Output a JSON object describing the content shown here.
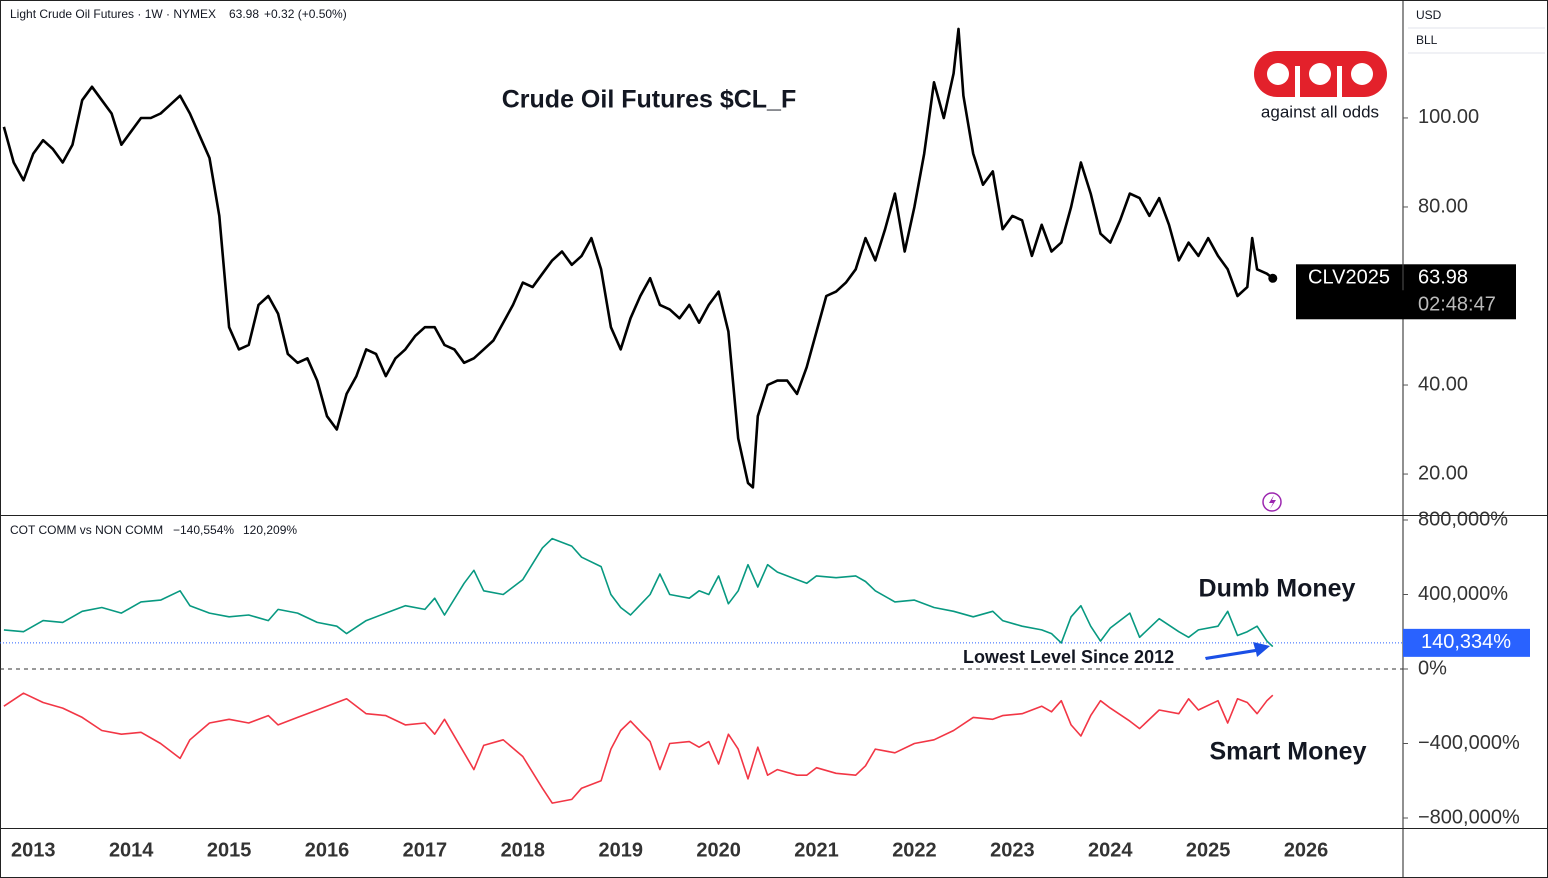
{
  "currency": "USD",
  "unit": "BLL",
  "logo": "against all odds",
  "chart_data": [
    {
      "type": "line",
      "header": "Light Crude Oil Futures · 1W · NYMEX",
      "last": 63.98,
      "change": "+0.32 (+0.50%)",
      "title": "Crude Oil Futures $CL_F",
      "countdown": "02:48:47",
      "xlim": [
        2012.66,
        2026.99
      ],
      "ylim": [
        10.8,
        126.5
      ],
      "yticks": [
        {
          "value": 20,
          "label": "20.00"
        },
        {
          "value": 40,
          "label": "40.00"
        },
        {
          "value": 80,
          "label": "80.00"
        },
        {
          "value": 100,
          "label": "100.00"
        }
      ],
      "x": [
        2012.7,
        2012.8,
        2012.9,
        2013.0,
        2013.1,
        2013.2,
        2013.3,
        2013.4,
        2013.5,
        2013.6,
        2013.7,
        2013.8,
        2013.9,
        2014.0,
        2014.1,
        2014.2,
        2014.3,
        2014.4,
        2014.5,
        2014.6,
        2014.7,
        2014.8,
        2014.9,
        2015.0,
        2015.1,
        2015.2,
        2015.3,
        2015.4,
        2015.5,
        2015.6,
        2015.7,
        2015.8,
        2015.9,
        2016.0,
        2016.1,
        2016.2,
        2016.3,
        2016.4,
        2016.5,
        2016.6,
        2016.7,
        2016.8,
        2016.9,
        2017.0,
        2017.1,
        2017.2,
        2017.3,
        2017.4,
        2017.5,
        2017.6,
        2017.7,
        2017.8,
        2017.9,
        2018.0,
        2018.1,
        2018.2,
        2018.3,
        2018.4,
        2018.5,
        2018.6,
        2018.7,
        2018.8,
        2018.9,
        2019.0,
        2019.1,
        2019.2,
        2019.3,
        2019.4,
        2019.5,
        2019.6,
        2019.7,
        2019.8,
        2019.9,
        2020.0,
        2020.1,
        2020.2,
        2020.3,
        2020.35,
        2020.4,
        2020.5,
        2020.6,
        2020.7,
        2020.8,
        2020.9,
        2021.0,
        2021.1,
        2021.2,
        2021.3,
        2021.4,
        2021.5,
        2021.6,
        2021.7,
        2021.8,
        2021.9,
        2022.0,
        2022.1,
        2022.2,
        2022.3,
        2022.4,
        2022.45,
        2022.5,
        2022.6,
        2022.7,
        2022.8,
        2022.9,
        2023.0,
        2023.1,
        2023.2,
        2023.3,
        2023.4,
        2023.5,
        2023.6,
        2023.7,
        2023.8,
        2023.9,
        2024.0,
        2024.1,
        2024.2,
        2024.3,
        2024.4,
        2024.5,
        2024.6,
        2024.7,
        2024.8,
        2024.9,
        2025.0,
        2025.1,
        2025.2,
        2025.3,
        2025.4,
        2025.45,
        2025.5,
        2025.6,
        2025.66
      ],
      "series": [
        {
          "name": "CLV2025",
          "color": "#000000",
          "values": [
            98,
            90,
            86,
            92,
            95,
            93,
            90,
            94,
            104,
            107,
            104,
            101,
            94,
            97,
            100,
            100,
            101,
            103,
            105,
            101,
            96,
            91,
            78,
            53,
            48,
            49,
            58,
            60,
            56,
            47,
            45,
            46,
            41,
            33,
            30,
            38,
            42,
            48,
            47,
            42,
            46,
            48,
            51,
            53,
            53,
            49,
            48,
            45,
            46,
            48,
            50,
            54,
            58,
            63,
            62,
            65,
            68,
            70,
            67,
            69,
            73,
            66,
            53,
            48,
            55,
            60,
            64,
            58,
            57,
            55,
            58,
            54,
            58,
            61,
            52,
            28,
            18,
            17,
            33,
            40,
            41,
            41,
            38,
            44,
            52,
            60,
            61,
            63,
            66,
            73,
            68,
            75,
            83,
            70,
            80,
            92,
            108,
            100,
            110,
            120,
            105,
            92,
            85,
            88,
            75,
            78,
            77,
            69,
            76,
            70,
            72,
            80,
            90,
            83,
            74,
            72,
            77,
            83,
            82,
            78,
            82,
            76,
            68,
            72,
            69,
            73,
            69,
            66,
            60,
            62,
            73,
            66,
            65,
            63.98
          ]
        }
      ]
    },
    {
      "type": "line",
      "header": "COT COMM vs NON COMM",
      "xlim": [
        2012.66,
        2026.99
      ],
      "ylim": [
        -853700,
        826800
      ],
      "xticks": [
        2013,
        2014,
        2015,
        2016,
        2017,
        2018,
        2019,
        2020,
        2021,
        2022,
        2023,
        2024,
        2025,
        2026
      ],
      "yticks": [
        {
          "value": -800000,
          "label": "−800,000%"
        },
        {
          "value": -400000,
          "label": "−400,000%"
        },
        {
          "value": 0,
          "label": "0%"
        },
        {
          "value": 400000,
          "label": "400,000%"
        },
        {
          "value": 800000,
          "label": "800,000%"
        }
      ],
      "marker": {
        "value": 140334,
        "label": "140,334%"
      },
      "annotation": "Lowest Level Since 2012",
      "x": [
        2012.7,
        2012.9,
        2013.1,
        2013.3,
        2013.5,
        2013.7,
        2013.9,
        2014.1,
        2014.3,
        2014.5,
        2014.6,
        2014.8,
        2015.0,
        2015.2,
        2015.4,
        2015.5,
        2015.7,
        2015.9,
        2016.1,
        2016.2,
        2016.4,
        2016.6,
        2016.8,
        2017.0,
        2017.1,
        2017.2,
        2017.4,
        2017.5,
        2017.6,
        2017.8,
        2018.0,
        2018.2,
        2018.3,
        2018.5,
        2018.6,
        2018.8,
        2018.9,
        2019.0,
        2019.1,
        2019.3,
        2019.4,
        2019.5,
        2019.7,
        2019.8,
        2019.9,
        2020.0,
        2020.1,
        2020.2,
        2020.3,
        2020.4,
        2020.5,
        2020.6,
        2020.8,
        2020.9,
        2021.0,
        2021.2,
        2021.4,
        2021.5,
        2021.6,
        2021.8,
        2022.0,
        2022.2,
        2022.4,
        2022.6,
        2022.8,
        2022.9,
        2023.1,
        2023.3,
        2023.4,
        2023.5,
        2023.6,
        2023.7,
        2023.8,
        2023.9,
        2024.0,
        2024.2,
        2024.3,
        2024.5,
        2024.7,
        2024.8,
        2024.9,
        2025.1,
        2025.2,
        2025.3,
        2025.4,
        2025.5,
        2025.6,
        2025.66
      ],
      "series": [
        {
          "name": "Smart Money",
          "color": "#f23645",
          "legend_value": {
            "value": -140554,
            "label": "−140,554%"
          },
          "values": [
            -200000,
            -130000,
            -180000,
            -210000,
            -260000,
            -330000,
            -350000,
            -340000,
            -400000,
            -480000,
            -380000,
            -290000,
            -270000,
            -290000,
            -250000,
            -300000,
            -260000,
            -220000,
            -180000,
            -160000,
            -240000,
            -250000,
            -300000,
            -290000,
            -350000,
            -270000,
            -450000,
            -540000,
            -410000,
            -380000,
            -470000,
            -640000,
            -720000,
            -700000,
            -640000,
            -600000,
            -430000,
            -330000,
            -280000,
            -390000,
            -540000,
            -400000,
            -390000,
            -420000,
            -390000,
            -510000,
            -350000,
            -430000,
            -590000,
            -420000,
            -570000,
            -540000,
            -570000,
            -570000,
            -530000,
            -560000,
            -570000,
            -520000,
            -430000,
            -450000,
            -400000,
            -380000,
            -330000,
            -260000,
            -270000,
            -250000,
            -240000,
            -200000,
            -230000,
            -170000,
            -300000,
            -360000,
            -250000,
            -170000,
            -210000,
            -280000,
            -320000,
            -220000,
            -240000,
            -160000,
            -220000,
            -170000,
            -290000,
            -160000,
            -180000,
            -240000,
            -170000,
            -140554
          ]
        },
        {
          "name": "Dumb Money",
          "color": "#089981",
          "legend_value": {
            "value": 120209,
            "label": "120,209%"
          },
          "values": [
            210000,
            200000,
            260000,
            250000,
            310000,
            330000,
            300000,
            360000,
            370000,
            420000,
            340000,
            300000,
            280000,
            290000,
            260000,
            320000,
            300000,
            250000,
            230000,
            190000,
            260000,
            300000,
            340000,
            320000,
            380000,
            290000,
            460000,
            530000,
            420000,
            400000,
            480000,
            650000,
            700000,
            660000,
            600000,
            550000,
            400000,
            330000,
            290000,
            400000,
            510000,
            400000,
            380000,
            420000,
            400000,
            500000,
            350000,
            420000,
            560000,
            440000,
            560000,
            520000,
            480000,
            460000,
            500000,
            490000,
            500000,
            470000,
            420000,
            360000,
            370000,
            330000,
            310000,
            280000,
            310000,
            260000,
            230000,
            210000,
            190000,
            140000,
            280000,
            340000,
            230000,
            150000,
            220000,
            300000,
            170000,
            270000,
            200000,
            170000,
            210000,
            230000,
            310000,
            180000,
            200000,
            230000,
            150000,
            120209
          ]
        }
      ]
    }
  ]
}
